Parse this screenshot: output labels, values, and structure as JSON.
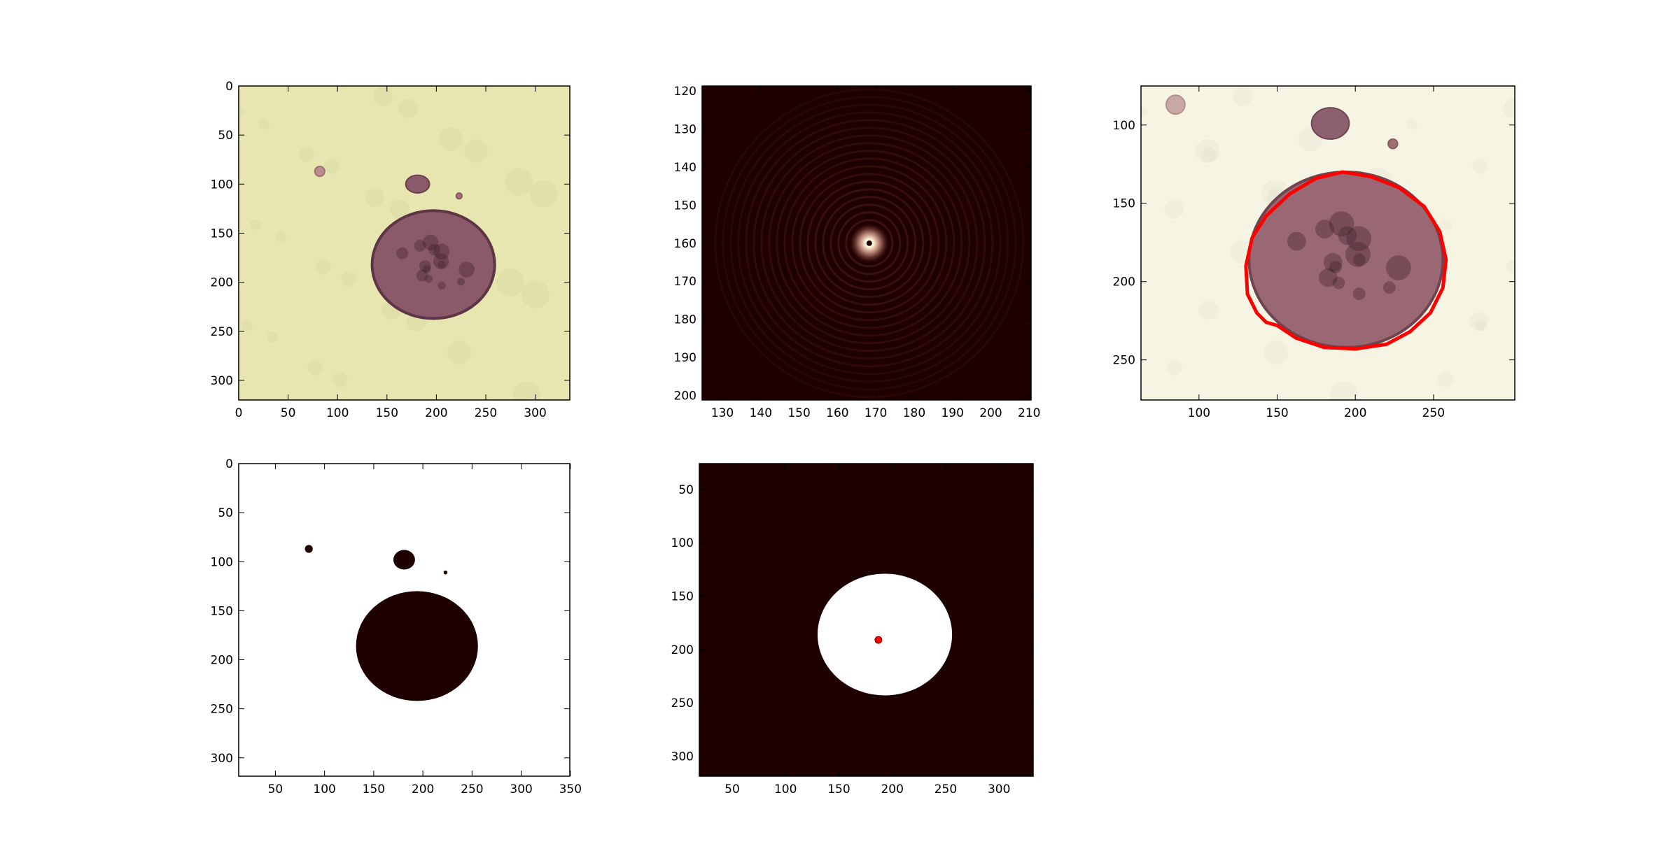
{
  "figure": {
    "panels": [
      {
        "id": "raw-image",
        "kind": "image",
        "xlim": [
          0,
          335
        ],
        "ylim": [
          320,
          0
        ],
        "xticks": [
          0,
          50,
          100,
          150,
          200,
          250,
          300
        ],
        "yticks": [
          0,
          50,
          100,
          150,
          200,
          250,
          300
        ],
        "colormap": "pink",
        "background": "#e7e6b0",
        "blobs": [
          {
            "cx": 197,
            "cy": 182,
            "rx": 62,
            "ry": 55,
            "fill": "#8b5a6a",
            "edge": "#5d3646"
          },
          {
            "cx": 181,
            "cy": 100,
            "rx": 12,
            "ry": 9,
            "fill": "#8a5a68",
            "edge": "#6a3e4e"
          },
          {
            "cx": 82,
            "cy": 87,
            "rx": 5,
            "ry": 5,
            "fill": "#b98b8c",
            "edge": "#a07072"
          },
          {
            "cx": 223,
            "cy": 112,
            "rx": 3,
            "ry": 3,
            "fill": "#a07072",
            "edge": "#8a5a62"
          }
        ]
      },
      {
        "id": "fft-spectrum",
        "kind": "spectrum",
        "xlim": [
          124.7,
          210.5
        ],
        "ylim": [
          201.2,
          118.7
        ],
        "xticks": [
          130,
          140,
          150,
          160,
          170,
          180,
          190,
          200,
          210
        ],
        "yticks": [
          120,
          130,
          140,
          150,
          160,
          170,
          180,
          190,
          200
        ],
        "colormap": "pink",
        "background": "#1f0000",
        "peak": {
          "x": 168.3,
          "y": 160.0
        }
      },
      {
        "id": "smoothed-contour",
        "kind": "image",
        "xlim": [
          62.9,
          302
        ],
        "ylim": [
          275.6,
          75.1
        ],
        "xticks": [
          100,
          150,
          200,
          250
        ],
        "yticks": [
          100,
          150,
          200,
          250
        ],
        "colormap": "pink",
        "background": "#f6f4e2",
        "blobs": [
          {
            "cx": 194,
            "cy": 186,
            "rx": 62,
            "ry": 56,
            "fill": "#9a6874",
            "edge": "#6d4450"
          },
          {
            "cx": 184,
            "cy": 99,
            "rx": 12,
            "ry": 10,
            "fill": "#8d6070",
            "edge": "#6f4454"
          },
          {
            "cx": 85,
            "cy": 87,
            "rx": 6,
            "ry": 6,
            "fill": "#c7a8a4",
            "edge": "#b38e8c"
          },
          {
            "cx": 224,
            "cy": 112,
            "rx": 3,
            "ry": 3,
            "fill": "#a07072",
            "edge": "#8a5a62"
          }
        ],
        "contour": {
          "color": "#ff0000",
          "points": [
            [
              192,
              130
            ],
            [
              210,
              133
            ],
            [
              228,
              140
            ],
            [
              244,
              152
            ],
            [
              254,
              168
            ],
            [
              258,
              186
            ],
            [
              256,
              204
            ],
            [
              248,
              220
            ],
            [
              235,
              232
            ],
            [
              220,
              240
            ],
            [
              200,
              243
            ],
            [
              180,
              242
            ],
            [
              162,
              236
            ],
            [
              150,
              228
            ],
            [
              143,
              226
            ],
            [
              137,
              220
            ],
            [
              131,
              208
            ],
            [
              130,
              190
            ],
            [
              134,
              172
            ],
            [
              143,
              158
            ],
            [
              158,
              144
            ],
            [
              175,
              134
            ]
          ]
        }
      },
      {
        "id": "threshold-mask",
        "kind": "mask",
        "xlim": [
          12.7,
          349.4
        ],
        "ylim": [
          318.7,
          0
        ],
        "xticks": [
          50,
          100,
          150,
          200,
          250,
          300,
          350
        ],
        "yticks": [
          0,
          50,
          100,
          150,
          200,
          250,
          300
        ],
        "background": "#ffffff",
        "foreground": "#1f0000",
        "blobs": [
          {
            "cx": 194,
            "cy": 186,
            "rx": 62,
            "ry": 56
          },
          {
            "cx": 181,
            "cy": 98,
            "rx": 11,
            "ry": 10
          },
          {
            "cx": 84,
            "cy": 87,
            "rx": 4,
            "ry": 4
          },
          {
            "cx": 223,
            "cy": 111,
            "rx": 2,
            "ry": 2
          }
        ]
      },
      {
        "id": "filled-mask-centroid",
        "kind": "mask",
        "xlim": [
          19.2,
          332
        ],
        "ylim": [
          318.7,
          25.8
        ],
        "xticks": [
          50,
          100,
          150,
          200,
          250,
          300
        ],
        "yticks": [
          50,
          100,
          150,
          200,
          250,
          300
        ],
        "background": "#1f0000",
        "foreground": "#ffffff",
        "blobs": [
          {
            "cx": 193,
            "cy": 186,
            "rx": 63,
            "ry": 57
          }
        ],
        "centroid": {
          "x": 187,
          "y": 191,
          "color": "#ff0000"
        }
      }
    ]
  }
}
